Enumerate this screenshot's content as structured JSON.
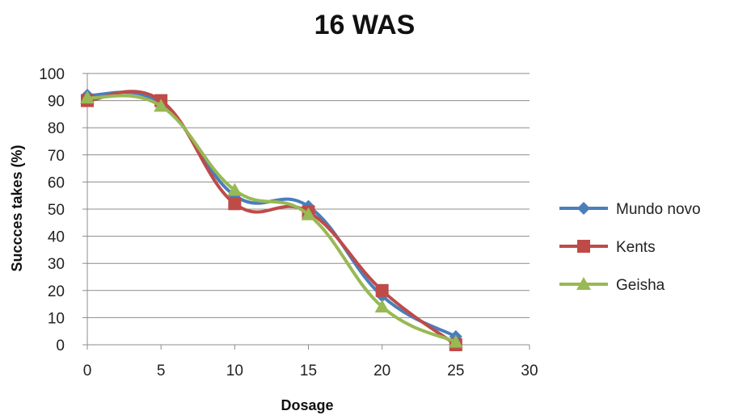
{
  "chart_data": {
    "type": "line",
    "title": "16 WAS",
    "xlabel": "Dosage",
    "ylabel": "Succces takes (%)",
    "xlim": [
      0,
      30
    ],
    "ylim": [
      0,
      100
    ],
    "x_ticks": [
      0,
      5,
      10,
      15,
      20,
      25,
      30
    ],
    "y_ticks": [
      0,
      10,
      20,
      30,
      40,
      50,
      60,
      70,
      80,
      90,
      100
    ],
    "grid": "horizontal",
    "smooth": true,
    "legend_position": "right",
    "series": [
      {
        "name": "Mundo novo",
        "marker": "diamond",
        "color": "#4a7ebb",
        "x": [
          0,
          5,
          10,
          15,
          20,
          25
        ],
        "y": [
          92,
          89,
          55,
          51,
          18,
          3
        ]
      },
      {
        "name": "Kents",
        "marker": "square",
        "color": "#be4b48",
        "x": [
          0,
          5,
          10,
          15,
          20,
          25
        ],
        "y": [
          90,
          90,
          52,
          49,
          20,
          0
        ]
      },
      {
        "name": "Geisha",
        "marker": "triangle",
        "color": "#98b954",
        "x": [
          0,
          5,
          10,
          15,
          20,
          25
        ],
        "y": [
          91,
          88,
          57,
          48,
          14,
          1
        ]
      }
    ]
  }
}
